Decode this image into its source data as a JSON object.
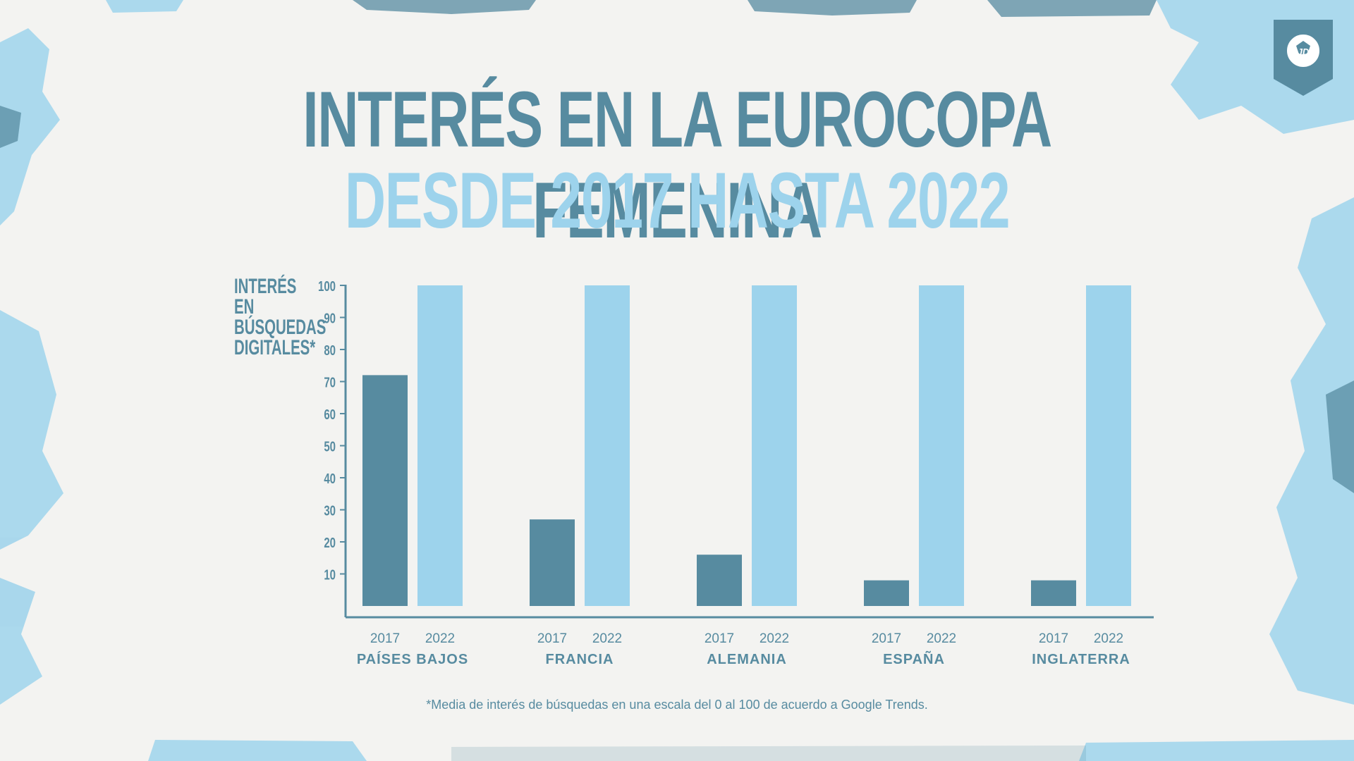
{
  "title": {
    "line1": "INTERÉS EN LA EUROCOPA FEMENINA",
    "line2": "DESDE 2017 HASTA 2022"
  },
  "colors": {
    "dark": "#578ba0",
    "light": "#9dd3ec",
    "axis": "#578ba0",
    "background": "#f3f3f1"
  },
  "badge": {
    "icon": "football-icon",
    "text": "JD"
  },
  "chart_data": {
    "type": "bar",
    "ylabel": "INTERÉS EN\nBÚSQUEDAS\nDIGITALES*",
    "ylim": [
      0,
      100
    ],
    "yticks": [
      10,
      20,
      30,
      40,
      50,
      60,
      70,
      80,
      90,
      100
    ],
    "grid": false,
    "categories": [
      "PAÍSES BAJOS",
      "FRANCIA",
      "ALEMANIA",
      "ESPAÑA",
      "INGLATERRA"
    ],
    "series": [
      {
        "name": "2017",
        "values": [
          72,
          27,
          16,
          8,
          8
        ]
      },
      {
        "name": "2022",
        "values": [
          100,
          100,
          100,
          100,
          100
        ]
      }
    ]
  },
  "footnote": "*Media de interés de búsquedas en una escala del 0 al 100 de acuerdo a Google Trends."
}
